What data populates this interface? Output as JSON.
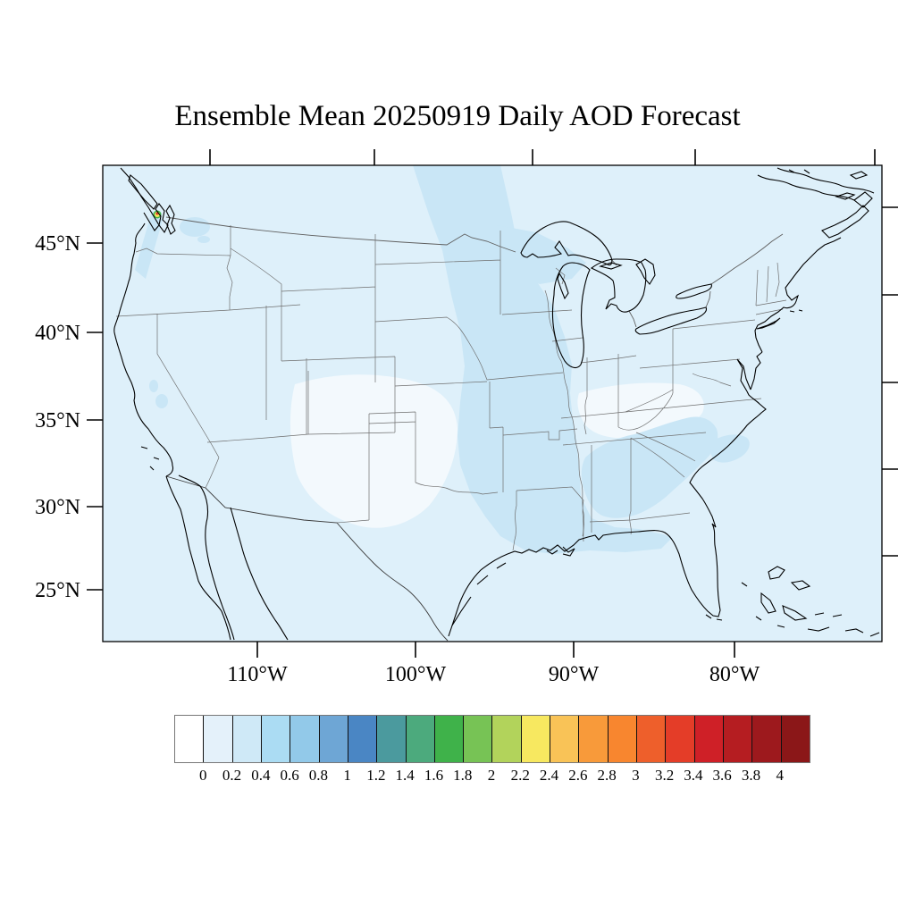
{
  "title": "Ensemble Mean 20250919 Daily AOD Forecast",
  "axes": {
    "lat_labels": [
      "45°N",
      "40°N",
      "35°N",
      "30°N",
      "25°N"
    ],
    "lon_labels": [
      "110°W",
      "100°W",
      "90°W",
      "80°W"
    ]
  },
  "colorbar": {
    "tick_labels": [
      "0",
      "0.2",
      "0.4",
      "0.6",
      "0.8",
      "1",
      "1.2",
      "1.4",
      "1.6",
      "1.8",
      "2",
      "2.2",
      "2.4",
      "2.6",
      "2.8",
      "3",
      "3.2",
      "3.4",
      "3.6",
      "3.8",
      "4"
    ],
    "colors": [
      "#ffffff",
      "#e4f1fa",
      "#cfe9f7",
      "#abdcf3",
      "#92c9e9",
      "#6ea6d5",
      "#4a86c4",
      "#4b9a9e",
      "#4caa7d",
      "#3fb24a",
      "#77c355",
      "#b2d35b",
      "#f7e860",
      "#f9c357",
      "#f89a3a",
      "#f8862f",
      "#ee5f2b",
      "#e43d28",
      "#cf2027",
      "#b51d21",
      "#9d191d",
      "#8b1718"
    ]
  },
  "map_colors": {
    "base_fill": "#def0fa",
    "band_fill": "#c9e6f6",
    "near_zero_fill": "#f3f9fd",
    "coastline": "#000000",
    "state_border": "#6e6e6e",
    "frame": "#000000"
  },
  "chart_data": {
    "type": "heatmap",
    "title": "Ensemble Mean 20250919 Daily AOD Forecast",
    "variable": "Daily mean Aerosol Optical Depth (AOD), ensemble mean forecast",
    "date_shown_in_title": "20250919",
    "lat_ticks_degN": [
      45,
      40,
      35,
      30,
      25
    ],
    "lon_ticks_degW": [
      110,
      100,
      90,
      80
    ],
    "colorbar_levels": [
      0,
      0.2,
      0.4,
      0.6,
      0.8,
      1,
      1.2,
      1.4,
      1.6,
      1.8,
      2,
      2.2,
      2.4,
      2.6,
      2.8,
      3,
      3.2,
      3.4,
      3.6,
      3.8,
      4
    ],
    "colorbar_colors": [
      "#ffffff",
      "#e4f1fa",
      "#cfe9f7",
      "#abdcf3",
      "#92c9e9",
      "#6ea6d5",
      "#4a86c4",
      "#4b9a9e",
      "#4caa7d",
      "#3fb24a",
      "#77c355",
      "#b2d35b",
      "#f7e860",
      "#f9c357",
      "#f89a3a",
      "#f8862f",
      "#ee5f2b",
      "#e43d28",
      "#cf2027",
      "#b51d21",
      "#9d191d",
      "#8b1718"
    ],
    "legend_position": "bottom",
    "grid": false,
    "regions": [
      {
        "area": "most of CONUS and adjacent ocean",
        "aod_range": "0-0.2"
      },
      {
        "area": "band from Minnesota/Wisconsin through Iowa, Missouri, Illinois, Arkansas to Mississippi valley and Gulf coast",
        "aod_range": "0.2-0.4"
      },
      {
        "area": "southeast: Alabama, Georgia, South Carolina and nearshore Atlantic",
        "aod_range": "0.2-0.4"
      },
      {
        "area": "Gulf coast fringe along Louisiana / Florida panhandle",
        "aod_range": "0.2-0.4"
      },
      {
        "area": "eastern Washington patch",
        "aod_range": "0.2-0.4"
      },
      {
        "area": "Pacific Northwest coastal streak southwest of Puget Sound",
        "aod_range": "0.2-0.4"
      },
      {
        "area": "small spots in central California",
        "aod_range": "0.2-0.4"
      },
      {
        "area": "tiny hotspot near Puget Sound (smoke plume): green/yellow/orange/red core",
        "aod_range": "up to ~2-4"
      },
      {
        "area": "central plains (Kansas/Oklahoma/west Texas) and Tennessee-Ohio valley patches",
        "aod_range": "~0 (white)"
      }
    ]
  }
}
